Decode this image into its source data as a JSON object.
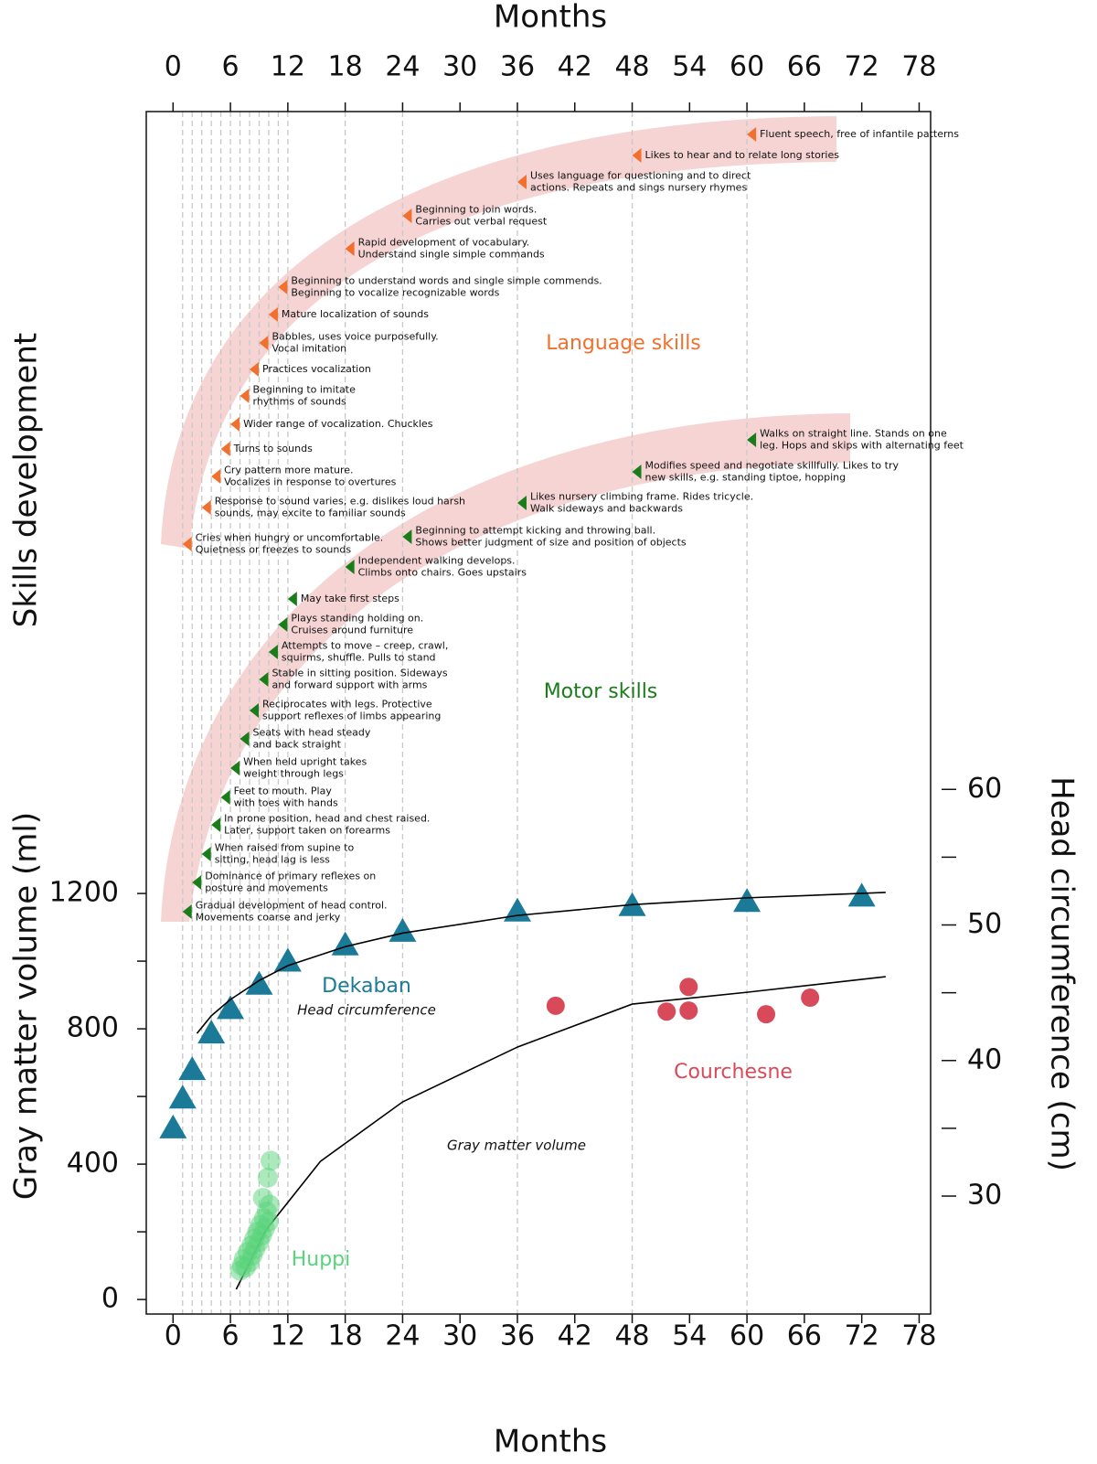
{
  "chart_data": {
    "type": "scatter",
    "xlabel": "Months",
    "xlim": [
      -2.8,
      79.2
    ],
    "xticks": [
      0,
      6,
      12,
      18,
      24,
      30,
      36,
      42,
      48,
      54,
      60,
      66,
      72,
      78
    ],
    "ylabel": "Gray matter volume (ml)",
    "ylim": [
      -43,
      3511
    ],
    "yticks": [
      0,
      400,
      800,
      1200
    ],
    "yminor_ticks": [
      200,
      600,
      1000
    ],
    "y2label": "Head circumference (cm)",
    "y2lim": [
      21.3,
      110
    ],
    "y2ticks": [
      30,
      40,
      50,
      60
    ],
    "y2minor_ticks": [
      35,
      45,
      55
    ],
    "skills_label": "Skills development",
    "month_gridlines": [
      1,
      2,
      3,
      4,
      5,
      6,
      7,
      8,
      9,
      10,
      11,
      12,
      18,
      24,
      36,
      48,
      60
    ],
    "series": [
      {
        "name": "Dekaban",
        "type": "scatter",
        "marker": "triangle",
        "axis": "y2",
        "color": "#1b7a97",
        "x": [
          0,
          1,
          2,
          4,
          6,
          9,
          12,
          18,
          24,
          36,
          48,
          60,
          72
        ],
        "values": [
          35,
          37.2,
          39.3,
          42,
          43.8,
          45.6,
          47.3,
          48.5,
          49.5,
          51,
          51.4,
          51.7,
          52.1
        ]
      },
      {
        "name": "Head circumference",
        "type": "line",
        "axis": "y2",
        "color": "#000000",
        "x": [
          2.5,
          4,
          6,
          9,
          12,
          18,
          24,
          36,
          48,
          60,
          74.5
        ],
        "values": [
          42,
          43.3,
          44.5,
          45.9,
          47,
          48.4,
          49.4,
          50.7,
          51.5,
          52,
          52.4
        ]
      },
      {
        "name": "Courchesne",
        "type": "scatter",
        "marker": "circle",
        "color": "#d84a5a",
        "x": [
          40,
          51.6,
          53.9,
          53.9,
          62,
          66.6
        ],
        "values": [
          868,
          851,
          924,
          854,
          843,
          892
        ]
      },
      {
        "name": "Gray matter volume",
        "type": "line",
        "color": "#000000",
        "x": [
          6.6,
          9.7,
          15.4,
          24,
          36,
          48,
          60,
          74.5
        ],
        "values": [
          30,
          205,
          408,
          584,
          746,
          873,
          908,
          954
        ]
      },
      {
        "name": "Huppi",
        "type": "scatter",
        "marker": "circle",
        "color": "#5ad47c",
        "x": [
          7.0,
          7.2,
          7.4,
          7.6,
          7.8,
          8.0,
          8.2,
          8.3,
          8.5,
          8.6,
          8.8,
          9.0,
          9.1,
          9.3,
          9.5,
          9.6,
          9.8,
          10.0,
          10.1,
          9.9,
          10.2,
          9.4
        ],
        "values": [
          85,
          100,
          120,
          95,
          140,
          110,
          160,
          130,
          180,
          150,
          200,
          170,
          220,
          190,
          240,
          210,
          260,
          230,
          280,
          360,
          410,
          300
        ]
      }
    ],
    "milestones": [
      {
        "name": "Language skills",
        "color": "#f2702e",
        "items": [
          {
            "month": 1,
            "text": [
              "Cries when hungry or uncomfortable.",
              "Quietness or freezes to sounds"
            ]
          },
          {
            "month": 3,
            "text": [
              "Response to sound varies, e.g. dislikes loud harsh",
              "sounds,  may excite to familiar sounds"
            ]
          },
          {
            "month": 4,
            "text": [
              "Cry pattern more mature.",
              "Vocalizes in response to overtures"
            ]
          },
          {
            "month": 5,
            "text": [
              "Turns to sounds"
            ]
          },
          {
            "month": 6,
            "text": [
              "Wider range of vocalization. Chuckles"
            ]
          },
          {
            "month": 7,
            "text": [
              "Beginning to imitate",
              "rhythms of sounds"
            ]
          },
          {
            "month": 8,
            "text": [
              "Practices vocalization"
            ]
          },
          {
            "month": 9,
            "text": [
              "Babbles, uses voice purposefully.",
              "Vocal imitation"
            ]
          },
          {
            "month": 10,
            "text": [
              "Mature localization of sounds"
            ]
          },
          {
            "month": 11,
            "text": [
              "Beginning to understand words and single simple commends.",
              "Beginning to vocalize recognizable words"
            ]
          },
          {
            "month": 18,
            "text": [
              "Rapid development of vocabulary.",
              "Understand single simple commands"
            ]
          },
          {
            "month": 24,
            "text": [
              "Beginning to join words.",
              "Carries out verbal request"
            ]
          },
          {
            "month": 36,
            "text": [
              "Uses language for questioning and to direct",
              "actions. Repeats and sings nursery rhymes"
            ]
          },
          {
            "month": 48,
            "text": [
              "Likes to hear and to relate long stories"
            ]
          },
          {
            "month": 60,
            "text": [
              "Fluent speech, free of infantile patterns"
            ]
          }
        ]
      },
      {
        "name": "Motor skills",
        "color": "#1a7d1a",
        "items": [
          {
            "month": 1,
            "text": [
              "Gradual development of head control.",
              "Movements coarse and jerky"
            ]
          },
          {
            "month": 2,
            "text": [
              "Dominance of primary reflexes on",
              "posture and movements"
            ]
          },
          {
            "month": 3,
            "text": [
              "When raised from supine to",
              "sitting, head lag is less"
            ]
          },
          {
            "month": 4,
            "text": [
              "In prone position, head and chest raised.",
              "Later, support taken on forearms"
            ]
          },
          {
            "month": 5,
            "text": [
              "Feet to mouth.  Play",
              "with toes with hands"
            ]
          },
          {
            "month": 6,
            "text": [
              "When held upright takes",
              "weight through legs"
            ]
          },
          {
            "month": 7,
            "text": [
              "Seats with head steady",
              "and back straight"
            ]
          },
          {
            "month": 8,
            "text": [
              "Reciprocates with legs. Protective",
              "support reflexes of limbs appearing"
            ]
          },
          {
            "month": 9,
            "text": [
              "Stable in sitting position. Sideways",
              "and forward support with arms"
            ]
          },
          {
            "month": 10,
            "text": [
              "Attempts to move – creep, crawl,",
              "squirms, shuffle. Pulls to stand"
            ]
          },
          {
            "month": 11,
            "text": [
              "Plays standing holding on.",
              "Cruises around furniture"
            ]
          },
          {
            "month": 12,
            "text": [
              "May take first steps"
            ]
          },
          {
            "month": 18,
            "text": [
              "Independent walking develops.",
              "Climbs onto chairs. Goes upstairs"
            ]
          },
          {
            "month": 24,
            "text": [
              "Beginning to attempt kicking and throwing ball.",
              "Shows better judgment of size and position of objects"
            ]
          },
          {
            "month": 36,
            "text": [
              "Likes nursery climbing frame. Rides tricycle.",
              "Walk sideways and backwards"
            ]
          },
          {
            "month": 48,
            "text": [
              "Modifies speed and negotiate skillfully. Likes to try",
              "new skills, e.g. standing tiptoe, hopping"
            ]
          },
          {
            "month": 60,
            "text": [
              "Walks on straight line. Stands on one",
              "leg. Hops and skips with alternating feet"
            ]
          }
        ]
      }
    ]
  }
}
